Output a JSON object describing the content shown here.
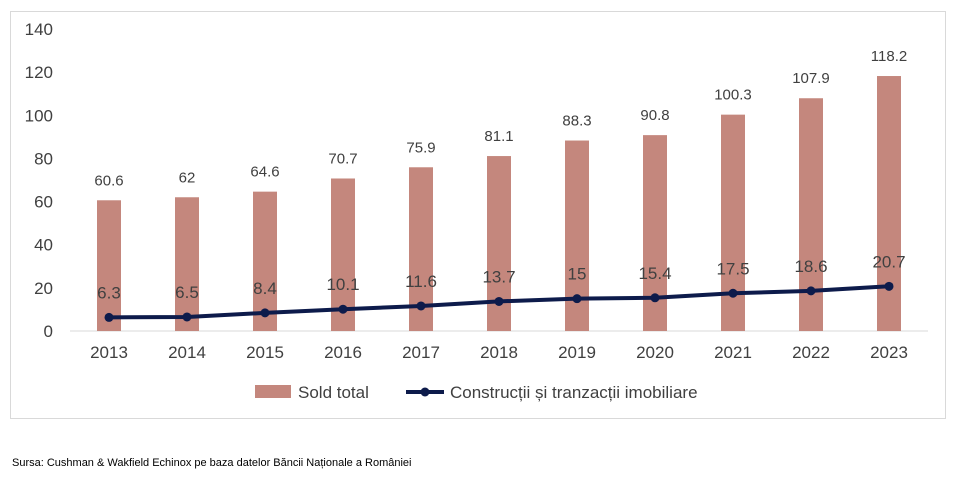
{
  "colors": {
    "bar": "#c4877d",
    "line": "#0d1b4b",
    "axis": "#d9d9d9",
    "text": "#404040"
  },
  "chart_data": {
    "type": "bar",
    "categories": [
      "2013",
      "2014",
      "2015",
      "2016",
      "2017",
      "2018",
      "2019",
      "2020",
      "2021",
      "2022",
      "2023"
    ],
    "ylim": [
      0,
      140
    ],
    "yticks": [
      0,
      20,
      40,
      60,
      80,
      100,
      120,
      140
    ],
    "grid": false,
    "legend_position": "bottom",
    "series": [
      {
        "name": "Sold total",
        "type": "bar",
        "values": [
          60.6,
          62,
          64.6,
          70.7,
          75.9,
          81.1,
          88.3,
          90.8,
          100.3,
          107.9,
          118.2
        ],
        "labels": [
          "60.6",
          "62",
          "64.6",
          "70.7",
          "75.9",
          "81.1",
          "88.3",
          "90.8",
          "100.3",
          "107.9",
          "118.2"
        ]
      },
      {
        "name": "Construcții și tranzacții imobiliare",
        "type": "line",
        "values": [
          6.3,
          6.5,
          8.4,
          10.1,
          11.6,
          13.7,
          15,
          15.4,
          17.5,
          18.6,
          20.7
        ],
        "labels": [
          "6.3",
          "6.5",
          "8.4",
          "10.1",
          "11.6",
          "13.7",
          "15",
          "15.4",
          "17.5",
          "18.6",
          "20.7"
        ]
      }
    ]
  },
  "source": "Sursa: Cushman & Wakfield Echinox pe baza datelor Băncii Naționale a României"
}
